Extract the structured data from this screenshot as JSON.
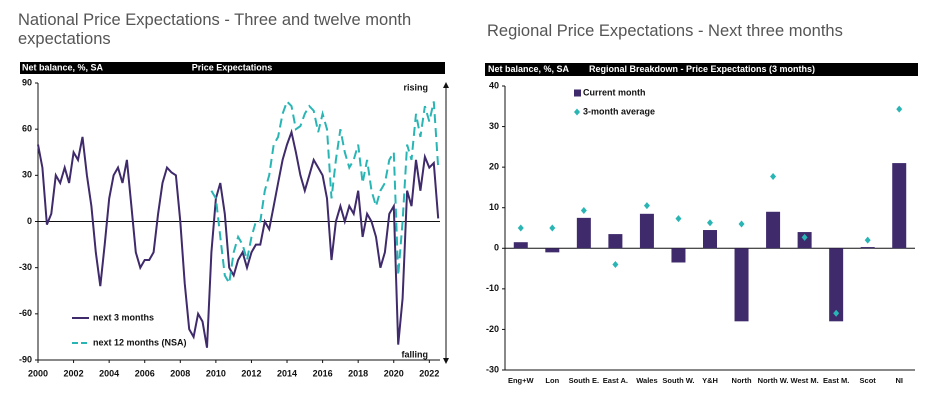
{
  "chart_data": [
    {
      "type": "line",
      "title": "National Price Expectations - Three and twelve month expectations",
      "header_label": "Net balance, %, SA",
      "header_title": "Price Expectations",
      "annotations": [
        "rising",
        "falling"
      ],
      "xlim": [
        2000,
        2022.6
      ],
      "xticks": [
        2000,
        2002,
        2004,
        2006,
        2008,
        2010,
        2012,
        2014,
        2016,
        2018,
        2020,
        2022
      ],
      "ylim": [
        -90,
        90
      ],
      "yticks": [
        -90,
        -60,
        -30,
        0,
        30,
        60,
        90
      ],
      "x": [
        2000,
        2000.25,
        2000.5,
        2000.75,
        2001,
        2001.25,
        2001.5,
        2001.75,
        2002,
        2002.25,
        2002.5,
        2002.75,
        2003,
        2003.25,
        2003.5,
        2003.75,
        2004,
        2004.25,
        2004.5,
        2004.75,
        2005,
        2005.25,
        2005.5,
        2005.75,
        2006,
        2006.25,
        2006.5,
        2006.75,
        2007,
        2007.25,
        2007.5,
        2007.75,
        2008,
        2008.25,
        2008.5,
        2008.75,
        2009,
        2009.25,
        2009.5,
        2009.75,
        2010,
        2010.25,
        2010.5,
        2010.75,
        2011,
        2011.25,
        2011.5,
        2011.75,
        2012,
        2012.25,
        2012.5,
        2012.75,
        2013,
        2013.25,
        2013.5,
        2013.75,
        2014,
        2014.25,
        2014.5,
        2014.75,
        2015,
        2015.25,
        2015.5,
        2015.75,
        2016,
        2016.25,
        2016.5,
        2016.75,
        2017,
        2017.25,
        2017.5,
        2017.75,
        2018,
        2018.25,
        2018.5,
        2018.75,
        2019,
        2019.25,
        2019.5,
        2019.75,
        2020,
        2020.25,
        2020.5,
        2020.75,
        2021,
        2021.25,
        2021.5,
        2021.75,
        2022,
        2022.25,
        2022.5
      ],
      "series": [
        {
          "name": "next 3 months",
          "color": "#3f2a6b",
          "dashed": false,
          "values": [
            50,
            35,
            -2,
            5,
            30,
            25,
            35,
            25,
            45,
            40,
            55,
            30,
            10,
            -20,
            -42,
            -15,
            15,
            30,
            35,
            25,
            40,
            10,
            -20,
            -30,
            -25,
            -25,
            -20,
            5,
            25,
            35,
            32,
            30,
            0,
            -40,
            -70,
            -75,
            -60,
            -65,
            -82,
            -20,
            15,
            25,
            5,
            -30,
            -35,
            -25,
            -20,
            -30,
            -20,
            -15,
            -15,
            0,
            -5,
            10,
            25,
            40,
            50,
            58,
            45,
            30,
            20,
            30,
            40,
            35,
            30,
            15,
            -25,
            0,
            10,
            0,
            10,
            5,
            20,
            -10,
            5,
            0,
            -10,
            -30,
            -20,
            5,
            10,
            -80,
            -50,
            20,
            10,
            40,
            20,
            42,
            35,
            38,
            2
          ]
        },
        {
          "name": "next 12 months (NSA)",
          "color": "#2ab5b5",
          "dashed": true,
          "values": [
            null,
            null,
            null,
            null,
            null,
            null,
            null,
            null,
            null,
            null,
            null,
            null,
            null,
            null,
            null,
            null,
            null,
            null,
            null,
            null,
            null,
            null,
            null,
            null,
            null,
            null,
            null,
            null,
            null,
            null,
            null,
            null,
            null,
            null,
            null,
            null,
            null,
            null,
            null,
            20,
            15,
            -10,
            -35,
            -40,
            -20,
            -10,
            -15,
            -25,
            -10,
            0,
            0,
            20,
            30,
            50,
            55,
            70,
            78,
            75,
            60,
            62,
            70,
            75,
            72,
            58,
            70,
            60,
            15,
            40,
            60,
            45,
            35,
            40,
            50,
            25,
            40,
            20,
            10,
            20,
            25,
            40,
            45,
            -35,
            0,
            50,
            40,
            70,
            55,
            75,
            65,
            78,
            35
          ]
        }
      ]
    },
    {
      "type": "bar",
      "title": "Regional Price Expectations - Next three months",
      "header_label": "Net balance, %, SA",
      "header_title": "Regional Breakdown - Price Expectations (3 months)",
      "categories": [
        "Eng+W",
        "Lon",
        "South E.",
        "East A.",
        "Wales",
        "South W.",
        "Y&H",
        "North",
        "North W.",
        "West M.",
        "East M.",
        "Scot",
        "NI"
      ],
      "ylim": [
        -30,
        40
      ],
      "yticks": [
        -30,
        -20,
        -10,
        0,
        10,
        20,
        30,
        40
      ],
      "series": [
        {
          "name": "Current month",
          "type": "bar",
          "color": "#3f2a6b",
          "values": [
            1.5,
            -1,
            7.5,
            3.5,
            8.5,
            -3.5,
            4.5,
            -18,
            9,
            4,
            -18,
            0.3,
            21
          ]
        },
        {
          "name": "3-month average",
          "type": "scatter",
          "color": "#2ab5b5",
          "values": [
            5,
            5,
            9.3,
            -4,
            10.5,
            7.3,
            6.3,
            6,
            17.7,
            2.7,
            -16,
            2,
            34.3
          ]
        }
      ]
    }
  ]
}
